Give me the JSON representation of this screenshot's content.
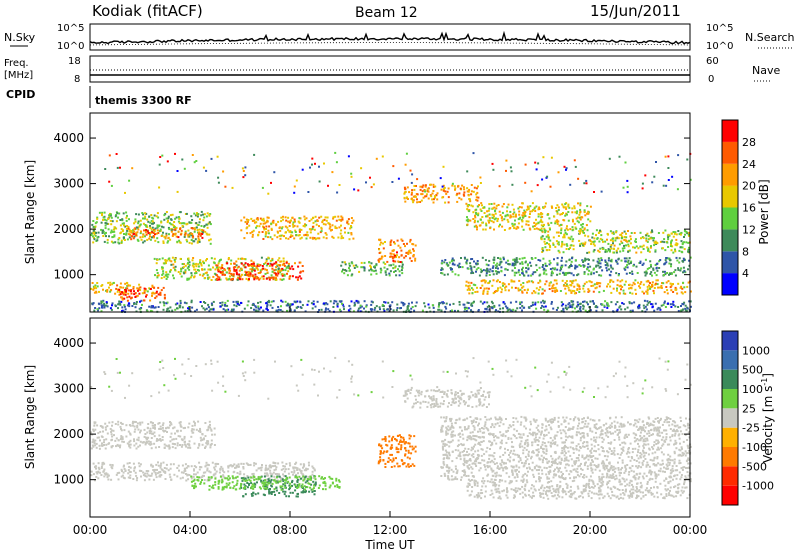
{
  "header": {
    "station": "Kodiak (fitACF)",
    "beam": "Beam 12",
    "date": "15/Jun/2011"
  },
  "nsky_panel": {
    "left_label": "N.Sky",
    "right_label": "N.Search",
    "tick_top": "10^5",
    "tick_bottom": "10^0",
    "right_tick_top": "10^5",
    "right_tick_bottom": "10^0"
  },
  "freq_panel": {
    "left_label_line1": "Freq.",
    "left_label_line2": "[MHz]",
    "left_tick_top": "18",
    "left_tick_bottom": "8",
    "right_label": "Nave",
    "right_tick_top": "60",
    "right_tick_bottom": "0"
  },
  "cpid_panel": {
    "label": "CPID",
    "value": "themis 3300 RF"
  },
  "x_axis": {
    "label": "Time UT",
    "ticks": [
      "00:00",
      "04:00",
      "08:00",
      "12:00",
      "16:00",
      "20:00",
      "00:00"
    ],
    "range_hours": [
      0,
      24
    ]
  },
  "colors": {
    "power_scale": [
      "#0000ff",
      "#2f55a8",
      "#3e8a5a",
      "#5fcf3f",
      "#e8c800",
      "#ff9c00",
      "#ff5a00",
      "#ff0000"
    ],
    "velocity_scale": [
      "#2b3fb5",
      "#3a6fb0",
      "#3a8a5a",
      "#6fd040",
      "#c8c8c0",
      "#ffb000",
      "#ff7a00",
      "#ff2a00",
      "#ff0000"
    ]
  },
  "chart_data": [
    {
      "type": "heatmap",
      "name": "power",
      "ylabel": "Slant Range [km]",
      "yticks": [
        1000,
        2000,
        3000,
        4000
      ],
      "ylim": [
        180,
        4550
      ],
      "xlim": [
        0,
        24
      ],
      "colorbar": {
        "label": "Power [dB]",
        "ticks": [
          "4",
          "8",
          "12",
          "16",
          "20",
          "24",
          "28"
        ],
        "range": [
          0,
          32
        ]
      },
      "bands": [
        {
          "t": [
            0,
            4.8
          ],
          "r": [
            1700,
            2400
          ],
          "value": 14
        },
        {
          "t": [
            1.5,
            4.5
          ],
          "r": [
            1800,
            2050
          ],
          "value": 24
        },
        {
          "t": [
            0,
            2.5
          ],
          "r": [
            600,
            850
          ],
          "value": 20
        },
        {
          "t": [
            2.5,
            8
          ],
          "r": [
            900,
            1400
          ],
          "value": 16
        },
        {
          "t": [
            5,
            8.5
          ],
          "r": [
            900,
            1300
          ],
          "value": 27
        },
        {
          "t": [
            1,
            3
          ],
          "r": [
            450,
            750
          ],
          "value": 27
        },
        {
          "t": [
            6,
            10.5
          ],
          "r": [
            1800,
            2300
          ],
          "value": 20
        },
        {
          "t": [
            10,
            12.5
          ],
          "r": [
            1000,
            1300
          ],
          "value": 12
        },
        {
          "t": [
            11.5,
            13
          ],
          "r": [
            1300,
            1800
          ],
          "value": 24
        },
        {
          "t": [
            12.5,
            15.5
          ],
          "r": [
            2600,
            3000
          ],
          "value": 22
        },
        {
          "t": [
            15,
            20
          ],
          "r": [
            2000,
            2600
          ],
          "value": 18
        },
        {
          "t": [
            14,
            24
          ],
          "r": [
            1000,
            1400
          ],
          "value": 10
        },
        {
          "t": [
            18,
            24
          ],
          "r": [
            1500,
            2000
          ],
          "value": 16
        },
        {
          "t": [
            15,
            24
          ],
          "r": [
            600,
            900
          ],
          "value": 20
        },
        {
          "t": [
            0,
            24
          ],
          "r": [
            200,
            450
          ],
          "value": 8
        }
      ]
    },
    {
      "type": "heatmap",
      "name": "velocity",
      "ylabel": "Slant Range [km]",
      "yticks": [
        1000,
        2000,
        3000,
        4000
      ],
      "ylim": [
        180,
        4550
      ],
      "xlim": [
        0,
        24
      ],
      "colorbar": {
        "label": "Velocity [m s^-1]",
        "ticks": [
          "1000",
          "500",
          "100",
          "25",
          "-25",
          "-100",
          "-500",
          "-1000"
        ]
      },
      "bands": [
        {
          "t": [
            0,
            5
          ],
          "r": [
            1700,
            2300
          ],
          "value": 0
        },
        {
          "t": [
            0,
            9
          ],
          "r": [
            1000,
            1400
          ],
          "value": 0
        },
        {
          "t": [
            6,
            9
          ],
          "r": [
            650,
            1100
          ],
          "value": 200
        },
        {
          "t": [
            4,
            10
          ],
          "r": [
            800,
            1100
          ],
          "value": 60
        },
        {
          "t": [
            11.5,
            13
          ],
          "r": [
            1300,
            2000
          ],
          "value": -200
        },
        {
          "t": [
            12.5,
            16
          ],
          "r": [
            2600,
            3000
          ],
          "value": 0
        },
        {
          "t": [
            14,
            24
          ],
          "r": [
            1000,
            2400
          ],
          "value": 0
        },
        {
          "t": [
            15,
            24
          ],
          "r": [
            600,
            1000
          ],
          "value": 0
        }
      ]
    }
  ]
}
